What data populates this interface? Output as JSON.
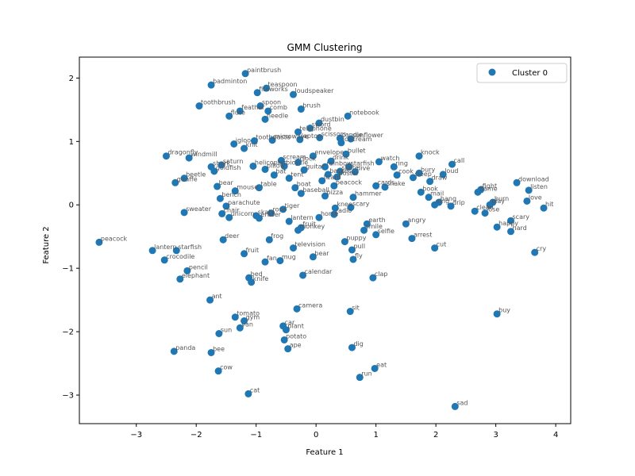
{
  "chart_data": {
    "type": "scatter",
    "title": "GMM Clustering",
    "xlabel": "Feature 1",
    "ylabel": "Feature 2",
    "xlim": [
      -3.95,
      4.25
    ],
    "ylim": [
      -3.45,
      2.33
    ],
    "xticks": [
      -3,
      -2,
      -1,
      0,
      1,
      2,
      3,
      4
    ],
    "yticks": [
      -3,
      -2,
      -1,
      0,
      1,
      2
    ],
    "xtick_labels": [
      "−3",
      "−2",
      "−1",
      "0",
      "1",
      "2",
      "3",
      "4"
    ],
    "ytick_labels": [
      "−3",
      "−2",
      "−1",
      "0",
      "1",
      "2"
    ],
    "grid": false,
    "legend_position": "top-right",
    "series": [
      {
        "name": "Cluster 0",
        "color": "#1f77b4",
        "points": [
          {
            "label": "paintbrush",
            "x": -1.18,
            "y": 2.07
          },
          {
            "label": "badminton",
            "x": -1.75,
            "y": 1.89
          },
          {
            "label": "teaspoon",
            "x": -0.83,
            "y": 1.84
          },
          {
            "label": "fireworks",
            "x": -0.98,
            "y": 1.77
          },
          {
            "label": "loudspeaker",
            "x": -0.38,
            "y": 1.74
          },
          {
            "label": "toothbrush",
            "x": -1.95,
            "y": 1.56
          },
          {
            "label": "spoon",
            "x": -0.93,
            "y": 1.56
          },
          {
            "label": "brush",
            "x": -0.25,
            "y": 1.51
          },
          {
            "label": "feather",
            "x": -1.27,
            "y": 1.48
          },
          {
            "label": "comb",
            "x": -0.8,
            "y": 1.48
          },
          {
            "label": "flute",
            "x": -1.45,
            "y": 1.4
          },
          {
            "label": "notebook",
            "x": 0.53,
            "y": 1.4
          },
          {
            "label": "needle",
            "x": -0.85,
            "y": 1.35
          },
          {
            "label": "dustbin",
            "x": 0.05,
            "y": 1.29
          },
          {
            "label": "sword",
            "x": -0.1,
            "y": 1.21
          },
          {
            "label": "telephone",
            "x": -0.3,
            "y": 1.15
          },
          {
            "label": "igloo",
            "x": -1.37,
            "y": 0.96
          },
          {
            "label": "toothpaste",
            "x": -1.03,
            "y": 1.01
          },
          {
            "label": "knit",
            "x": -1.2,
            "y": 0.89
          },
          {
            "label": "microwave",
            "x": -0.73,
            "y": 1.02
          },
          {
            "label": "laptop",
            "x": -0.27,
            "y": 1.03
          },
          {
            "label": "scissors",
            "x": 0.06,
            "y": 1.06
          },
          {
            "label": "candle",
            "x": 0.4,
            "y": 1.05
          },
          {
            "label": "sunflower",
            "x": 0.58,
            "y": 1.04
          },
          {
            "label": "icecream",
            "x": 0.42,
            "y": 0.98
          },
          {
            "label": "dragonfly",
            "x": -2.5,
            "y": 0.77
          },
          {
            "label": "windmill",
            "x": -2.12,
            "y": 0.74
          },
          {
            "label": "envelope",
            "x": -0.05,
            "y": 0.77
          },
          {
            "label": "bullet",
            "x": 0.5,
            "y": 0.8
          },
          {
            "label": "knock",
            "x": 1.72,
            "y": 0.77
          },
          {
            "label": "scream",
            "x": -0.58,
            "y": 0.7
          },
          {
            "label": "clock",
            "x": -0.3,
            "y": 0.67
          },
          {
            "label": "drink",
            "x": 0.25,
            "y": 0.69
          },
          {
            "label": "watch",
            "x": 1.05,
            "y": 0.68
          },
          {
            "label": "call",
            "x": 2.27,
            "y": 0.64
          },
          {
            "label": "saturn",
            "x": -1.58,
            "y": 0.63
          },
          {
            "label": "helicopter",
            "x": -1.05,
            "y": 0.61
          },
          {
            "label": "bicycle",
            "x": -0.53,
            "y": 0.61
          },
          {
            "label": "rainbow",
            "x": 0.15,
            "y": 0.6
          },
          {
            "label": "starfish2",
            "x": 0.55,
            "y": 0.6
          },
          {
            "label": "ring",
            "x": 1.3,
            "y": 0.6
          },
          {
            "label": "pillow",
            "x": -0.85,
            "y": 0.56
          },
          {
            "label": "shark",
            "x": -1.75,
            "y": 0.6
          },
          {
            "label": "goldfish",
            "x": -1.7,
            "y": 0.53
          },
          {
            "label": "guitar",
            "x": -0.2,
            "y": 0.55
          },
          {
            "label": "bury",
            "x": 1.72,
            "y": 0.5
          },
          {
            "label": "loud",
            "x": 2.12,
            "y": 0.48
          },
          {
            "label": "skate",
            "x": 0.4,
            "y": 0.53
          },
          {
            "label": "dive",
            "x": 0.65,
            "y": 0.52
          },
          {
            "label": "cook",
            "x": 1.35,
            "y": 0.47
          },
          {
            "label": "beetle",
            "x": -2.2,
            "y": 0.42
          },
          {
            "label": "giraffe",
            "x": -2.35,
            "y": 0.35
          },
          {
            "label": "basket",
            "x": 0.2,
            "y": 0.48
          },
          {
            "label": "poster",
            "x": 0.35,
            "y": 0.44
          },
          {
            "label": "bat",
            "x": -0.7,
            "y": 0.47
          },
          {
            "label": "draw",
            "x": 1.9,
            "y": 0.37
          },
          {
            "label": "sleep",
            "x": 1.62,
            "y": 0.43
          },
          {
            "label": "tent",
            "x": -0.45,
            "y": 0.42
          },
          {
            "label": "lizard",
            "x": 0.1,
            "y": 0.38
          },
          {
            "label": "bear2",
            "x": -1.65,
            "y": 0.29
          },
          {
            "label": "table",
            "x": -0.95,
            "y": 0.27
          },
          {
            "label": "mouse",
            "x": -1.35,
            "y": 0.22
          },
          {
            "label": "boat",
            "x": -0.35,
            "y": 0.27
          },
          {
            "label": "peacock2",
            "x": 0.3,
            "y": 0.3
          },
          {
            "label": "fight",
            "x": 2.75,
            "y": 0.24
          },
          {
            "label": "flame",
            "x": 2.7,
            "y": 0.2
          },
          {
            "label": "download",
            "x": 3.35,
            "y": 0.35
          },
          {
            "label": "listen",
            "x": 3.55,
            "y": 0.23
          },
          {
            "label": "book",
            "x": 1.75,
            "y": 0.2
          },
          {
            "label": "snake",
            "x": 1.15,
            "y": 0.28
          },
          {
            "label": "cards",
            "x": 1.0,
            "y": 0.3
          },
          {
            "label": "baseball",
            "x": -0.25,
            "y": 0.18
          },
          {
            "label": "pizza",
            "x": 0.15,
            "y": 0.14
          },
          {
            "label": "hammer",
            "x": 0.62,
            "y": 0.12
          },
          {
            "label": "mail",
            "x": 1.88,
            "y": 0.12
          },
          {
            "label": "bench",
            "x": -1.6,
            "y": 0.1
          },
          {
            "label": "love",
            "x": 3.52,
            "y": 0.06
          },
          {
            "label": "burn",
            "x": 2.95,
            "y": 0.04
          },
          {
            "label": "hang",
            "x": 2.05,
            "y": 0.04
          },
          {
            "label": "sing",
            "x": 1.98,
            "y": 0.0
          },
          {
            "label": "drip",
            "x": 2.25,
            "y": -0.02
          },
          {
            "label": "hit",
            "x": 3.8,
            "y": -0.05
          },
          {
            "label": "play",
            "x": 2.9,
            "y": 0.0
          },
          {
            "label": "clean",
            "x": 2.65,
            "y": -0.1
          },
          {
            "label": "parachute",
            "x": -1.5,
            "y": -0.02
          },
          {
            "label": "knee",
            "x": 0.32,
            "y": -0.05
          },
          {
            "label": "tiger",
            "x": -0.55,
            "y": -0.07
          },
          {
            "label": "scary2",
            "x": 0.58,
            "y": -0.04
          },
          {
            "label": "sweater",
            "x": -2.2,
            "y": -0.12
          },
          {
            "label": "chair",
            "x": -1.57,
            "y": -0.14
          },
          {
            "label": "rose",
            "x": -0.75,
            "y": -0.13
          },
          {
            "label": "radio",
            "x": 0.3,
            "y": -0.15
          },
          {
            "label": "lose",
            "x": 2.82,
            "y": -0.13
          },
          {
            "label": "skate2",
            "x": -1.0,
            "y": -0.17
          },
          {
            "label": "horse",
            "x": 0.05,
            "y": -0.2
          },
          {
            "label": "scary",
            "x": 3.25,
            "y": -0.25
          },
          {
            "label": "unicorn",
            "x": -1.45,
            "y": -0.2
          },
          {
            "label": "eraser",
            "x": -0.95,
            "y": -0.21
          },
          {
            "label": "lantern2",
            "x": -0.45,
            "y": -0.26
          },
          {
            "label": "earth",
            "x": 0.85,
            "y": -0.3
          },
          {
            "label": "angry",
            "x": 1.5,
            "y": -0.3
          },
          {
            "label": "happy",
            "x": 3.02,
            "y": -0.35
          },
          {
            "label": "hard",
            "x": 3.25,
            "y": -0.42
          },
          {
            "label": "fruit2",
            "x": -0.25,
            "y": -0.36
          },
          {
            "label": "monkey",
            "x": -0.3,
            "y": -0.4
          },
          {
            "label": "smile",
            "x": 0.8,
            "y": -0.4
          },
          {
            "label": "selfie",
            "x": 1.0,
            "y": -0.47
          },
          {
            "label": "arrest",
            "x": 1.6,
            "y": -0.53
          },
          {
            "label": "deer",
            "x": -1.55,
            "y": -0.55
          },
          {
            "label": "frog",
            "x": -0.78,
            "y": -0.55
          },
          {
            "label": "puppy",
            "x": 0.48,
            "y": -0.58
          },
          {
            "label": "peacock",
            "x": -3.62,
            "y": -0.59
          },
          {
            "label": "television",
            "x": -0.38,
            "y": -0.68
          },
          {
            "label": "cut",
            "x": 1.98,
            "y": -0.68
          },
          {
            "label": "pull",
            "x": 0.6,
            "y": -0.71
          },
          {
            "label": "lantern",
            "x": -2.73,
            "y": -0.72
          },
          {
            "label": "starfish",
            "x": -2.33,
            "y": -0.72
          },
          {
            "label": "fruit",
            "x": -1.2,
            "y": -0.77
          },
          {
            "label": "cry",
            "x": 3.65,
            "y": -0.75
          },
          {
            "label": "bear",
            "x": -0.05,
            "y": -0.82
          },
          {
            "label": "crocodile",
            "x": -2.53,
            "y": -0.87
          },
          {
            "label": "fly",
            "x": 0.62,
            "y": -0.86
          },
          {
            "label": "fan",
            "x": -0.85,
            "y": -0.9
          },
          {
            "label": "mug",
            "x": -0.6,
            "y": -0.88
          },
          {
            "label": "pencil",
            "x": -2.15,
            "y": -1.04
          },
          {
            "label": "calendar",
            "x": -0.22,
            "y": -1.11
          },
          {
            "label": "elephant",
            "x": -2.27,
            "y": -1.17
          },
          {
            "label": "bed",
            "x": -1.12,
            "y": -1.15
          },
          {
            "label": "clap",
            "x": 0.95,
            "y": -1.15
          },
          {
            "label": "knife",
            "x": -1.08,
            "y": -1.22
          },
          {
            "label": "ant",
            "x": -1.77,
            "y": -1.5
          },
          {
            "label": "camera",
            "x": -0.32,
            "y": -1.64
          },
          {
            "label": "sit",
            "x": 0.57,
            "y": -1.68
          },
          {
            "label": "buy",
            "x": 3.02,
            "y": -1.72
          },
          {
            "label": "tomato",
            "x": -1.35,
            "y": -1.77
          },
          {
            "label": "gym",
            "x": -1.2,
            "y": -1.83
          },
          {
            "label": "van",
            "x": -1.27,
            "y": -1.94
          },
          {
            "label": "car",
            "x": -0.55,
            "y": -1.91
          },
          {
            "label": "plant",
            "x": -0.5,
            "y": -1.97
          },
          {
            "label": "sun",
            "x": -1.62,
            "y": -2.03
          },
          {
            "label": "potato",
            "x": -0.53,
            "y": -2.13
          },
          {
            "label": "dig",
            "x": 0.6,
            "y": -2.25
          },
          {
            "label": "ape",
            "x": -0.47,
            "y": -2.27
          },
          {
            "label": "panda",
            "x": -2.37,
            "y": -2.31
          },
          {
            "label": "bee",
            "x": -1.75,
            "y": -2.33
          },
          {
            "label": "eat",
            "x": 0.98,
            "y": -2.58
          },
          {
            "label": "cow",
            "x": -1.63,
            "y": -2.62
          },
          {
            "label": "run",
            "x": 0.73,
            "y": -2.72
          },
          {
            "label": "cat",
            "x": -1.13,
            "y": -2.98
          },
          {
            "label": "sad",
            "x": 2.32,
            "y": -3.18
          }
        ]
      }
    ]
  }
}
